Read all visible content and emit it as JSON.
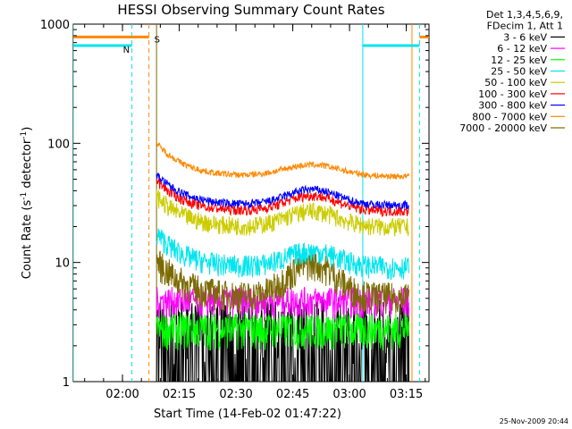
{
  "chart_data": {
    "type": "line",
    "title": "HESSI Observing Summary Count Rates",
    "xlabel": "Start Time (14-Feb-02 01:47:22)",
    "ylabel": "Count Rate (s",
    "ylabel_sup1": "-1",
    "ylabel_mid": " detector",
    "ylabel_sup2": "-1",
    "ylabel_end": ")",
    "yscale": "log",
    "ylim": [
      1,
      1000
    ],
    "xlim_minutes_from_0147": [
      0,
      94
    ],
    "x_ticks": [
      "02:00",
      "02:15",
      "02:30",
      "02:45",
      "03:00",
      "03:15"
    ],
    "y_ticks": [
      "1",
      "10",
      "100",
      "1000"
    ],
    "legend_position": "outside-right",
    "legend_header": [
      "Det 1,3,4,5,6,9,",
      "FDecim 1, Att 1"
    ],
    "series": [
      {
        "name": "3 - 6 keV",
        "color": "#000000",
        "level": 1.8
      },
      {
        "name": "6 - 12 keV",
        "color": "#ff00ff",
        "level": 4.8
      },
      {
        "name": "12 - 25 keV",
        "color": "#00ff00",
        "level": 2.8
      },
      {
        "name": "25 - 50 keV",
        "color": "#00e5ee",
        "level": 10
      },
      {
        "name": "50 - 100 keV",
        "color": "#cccc00",
        "level": 21
      },
      {
        "name": "100 - 300 keV",
        "color": "#ff0000",
        "level": 30
      },
      {
        "name": "300 - 800 keV",
        "color": "#0000ff",
        "level": 33
      },
      {
        "name": "800 - 7000 keV",
        "color": "#ff8800",
        "level": 60
      },
      {
        "name": "7000 - 20000 keV",
        "color": "#7a6a00",
        "level": 6.5
      }
    ],
    "annotations": {
      "s_marker": "S",
      "n_marker": "N"
    }
  },
  "footer_timestamp": "25-Nov-2009 20:44"
}
